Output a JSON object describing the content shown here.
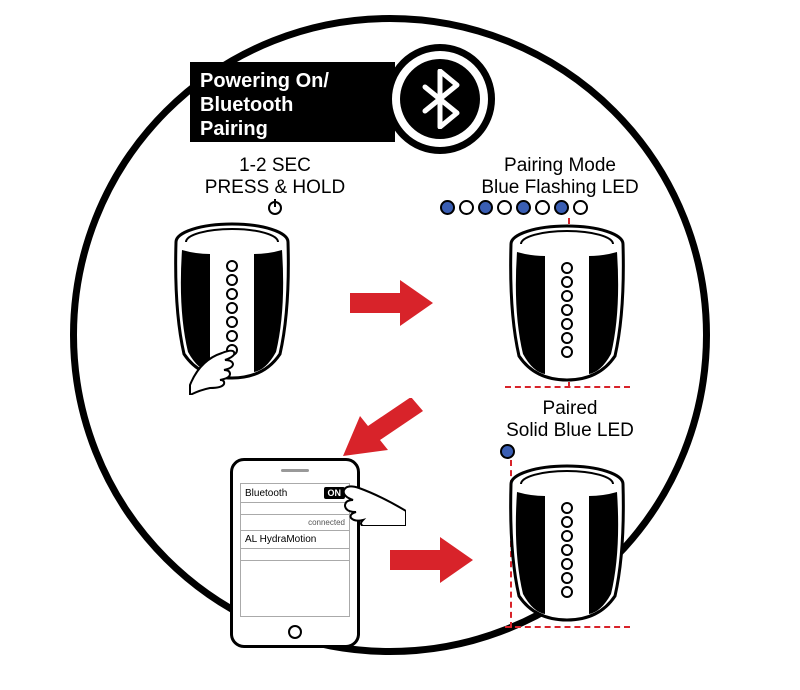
{
  "header": {
    "line1": "Powering On/",
    "line2": "Bluetooth",
    "line3": "Pairing"
  },
  "step1": {
    "line1": "1-2 SEC",
    "line2": "PRESS & HOLD"
  },
  "step2": {
    "line1": "Pairing Mode",
    "line2": "Blue Flashing LED",
    "led_pattern": [
      true,
      false,
      true,
      false,
      true,
      false,
      true,
      false
    ]
  },
  "step3": {
    "line1": "Paired",
    "line2": "Solid Blue LED"
  },
  "phone": {
    "bt_label": "Bluetooth",
    "on_label": "ON",
    "connected": "connected",
    "device": "AL HydraMotion"
  },
  "colors": {
    "led_blue": "#3a5eb3",
    "led_off": "#ffffff",
    "arrow": "#d8232a",
    "dash": "#d8232a",
    "black": "#000000"
  }
}
